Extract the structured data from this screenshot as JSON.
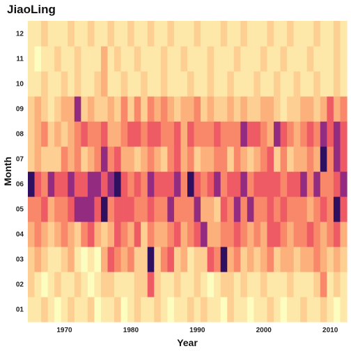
{
  "chart_data": {
    "type": "heatmap",
    "title": "JiaoLing",
    "xlabel": "Year",
    "ylabel": "Month",
    "x_start": 1965,
    "x_end": 2012,
    "x_ticks": [
      1970,
      1980,
      1990,
      2000,
      2010
    ],
    "y_categories": [
      "01",
      "02",
      "03",
      "04",
      "05",
      "06",
      "07",
      "08",
      "09",
      "10",
      "11",
      "12"
    ],
    "colorscale": "magma (reversed: light = low, dark = high)",
    "levels": [
      [
        1,
        1,
        2,
        1,
        0,
        1,
        2,
        1,
        1,
        2,
        0,
        1,
        1,
        2,
        0,
        1,
        2,
        1,
        1,
        2,
        1,
        0,
        1,
        1,
        2,
        1,
        2,
        1,
        1,
        0,
        2,
        1,
        1,
        0,
        1,
        1,
        2,
        1,
        0,
        1,
        1,
        2,
        1,
        1,
        2,
        1,
        0,
        1
      ],
      [
        2,
        1,
        0,
        1,
        2,
        1,
        1,
        2,
        1,
        0,
        1,
        2,
        2,
        1,
        1,
        1,
        2,
        2,
        5,
        2,
        1,
        1,
        2,
        1,
        1,
        2,
        1,
        0,
        1,
        2,
        2,
        1,
        2,
        1,
        1,
        2,
        1,
        1,
        1,
        2,
        1,
        1,
        1,
        2,
        4,
        1,
        2,
        1
      ],
      [
        2,
        3,
        2,
        1,
        1,
        2,
        3,
        1,
        0,
        1,
        0,
        3,
        5,
        4,
        3,
        4,
        2,
        2,
        7,
        2,
        4,
        5,
        2,
        3,
        1,
        2,
        2,
        5,
        4,
        7,
        3,
        4,
        2,
        3,
        2,
        3,
        4,
        2,
        3,
        3,
        2,
        3,
        3,
        4,
        3,
        2,
        3,
        2
      ],
      [
        3,
        4,
        3,
        2,
        3,
        4,
        3,
        2,
        4,
        5,
        3,
        2,
        3,
        5,
        4,
        3,
        5,
        2,
        4,
        3,
        3,
        4,
        5,
        3,
        4,
        5,
        6,
        3,
        3,
        4,
        4,
        5,
        4,
        3,
        4,
        3,
        5,
        5,
        4,
        3,
        4,
        4,
        5,
        4,
        3,
        4,
        5,
        3
      ],
      [
        4,
        4,
        5,
        3,
        4,
        4,
        5,
        6,
        6,
        6,
        5,
        7,
        4,
        5,
        5,
        5,
        4,
        4,
        5,
        4,
        4,
        6,
        4,
        4,
        4,
        6,
        3,
        3,
        2,
        5,
        4,
        6,
        4,
        6,
        4,
        4,
        5,
        4,
        5,
        4,
        4,
        4,
        3,
        4,
        5,
        4,
        7,
        5
      ],
      [
        7,
        5,
        4,
        6,
        5,
        5,
        6,
        5,
        5,
        6,
        6,
        5,
        6,
        7,
        5,
        4,
        5,
        4,
        6,
        5,
        5,
        5,
        6,
        4,
        7,
        5,
        4,
        5,
        6,
        4,
        5,
        5,
        6,
        4,
        5,
        5,
        5,
        5,
        4,
        5,
        5,
        6,
        4,
        6,
        4,
        4,
        5,
        6
      ],
      [
        2,
        3,
        2,
        2,
        2,
        4,
        3,
        4,
        2,
        3,
        4,
        6,
        4,
        5,
        3,
        3,
        2,
        3,
        4,
        3,
        2,
        4,
        5,
        3,
        4,
        2,
        3,
        3,
        4,
        4,
        2,
        4,
        3,
        2,
        3,
        4,
        5,
        2,
        4,
        2,
        3,
        3,
        4,
        3,
        7,
        4,
        6,
        5
      ],
      [
        2,
        3,
        4,
        2,
        3,
        2,
        3,
        4,
        5,
        4,
        4,
        5,
        3,
        3,
        4,
        5,
        5,
        4,
        5,
        5,
        4,
        4,
        5,
        3,
        5,
        4,
        4,
        4,
        5,
        4,
        4,
        4,
        6,
        5,
        5,
        4,
        3,
        6,
        5,
        4,
        3,
        4,
        5,
        4,
        6,
        5,
        6,
        5
      ],
      [
        2,
        3,
        2,
        1,
        2,
        3,
        3,
        6,
        2,
        3,
        2,
        2,
        3,
        2,
        4,
        2,
        4,
        2,
        4,
        3,
        4,
        3,
        2,
        3,
        3,
        4,
        2,
        3,
        2,
        2,
        3,
        2,
        3,
        2,
        2,
        3,
        3,
        2,
        1,
        2,
        2,
        3,
        3,
        2,
        3,
        5,
        3,
        4
      ],
      [
        1,
        1,
        2,
        1,
        1,
        2,
        1,
        2,
        1,
        1,
        2,
        3,
        1,
        1,
        2,
        1,
        1,
        2,
        1,
        1,
        2,
        1,
        1,
        1,
        2,
        1,
        1,
        2,
        1,
        1,
        2,
        1,
        1,
        1,
        2,
        1,
        1,
        2,
        1,
        1,
        2,
        1,
        1,
        2,
        1,
        1,
        2,
        1
      ],
      [
        1,
        0,
        1,
        1,
        2,
        1,
        1,
        2,
        1,
        1,
        1,
        3,
        1,
        2,
        1,
        1,
        2,
        1,
        1,
        1,
        2,
        1,
        1,
        2,
        1,
        1,
        1,
        2,
        1,
        1,
        1,
        2,
        1,
        1,
        1,
        2,
        1,
        1,
        2,
        1,
        1,
        1,
        2,
        1,
        1,
        1,
        2,
        1
      ],
      [
        1,
        1,
        2,
        1,
        1,
        1,
        2,
        1,
        1,
        2,
        1,
        1,
        2,
        1,
        1,
        2,
        1,
        1,
        2,
        1,
        1,
        2,
        1,
        1,
        1,
        2,
        1,
        1,
        1,
        2,
        1,
        1,
        2,
        1,
        1,
        1,
        2,
        1,
        1,
        2,
        1,
        1,
        1,
        2,
        1,
        1,
        2,
        1
      ]
    ],
    "palette": [
      "#fcfdbf",
      "#fde7a9",
      "#fecf92",
      "#fcb07c",
      "#f9886a",
      "#ee5b65",
      "#d3436e",
      "#b5367a",
      "#932b80",
      "#721f81",
      "#51127c",
      "#2f0f60",
      "#100c2e",
      "#000004"
    ],
    "level_to_palette": [
      0,
      1,
      2,
      3,
      4,
      5,
      8,
      11
    ]
  }
}
